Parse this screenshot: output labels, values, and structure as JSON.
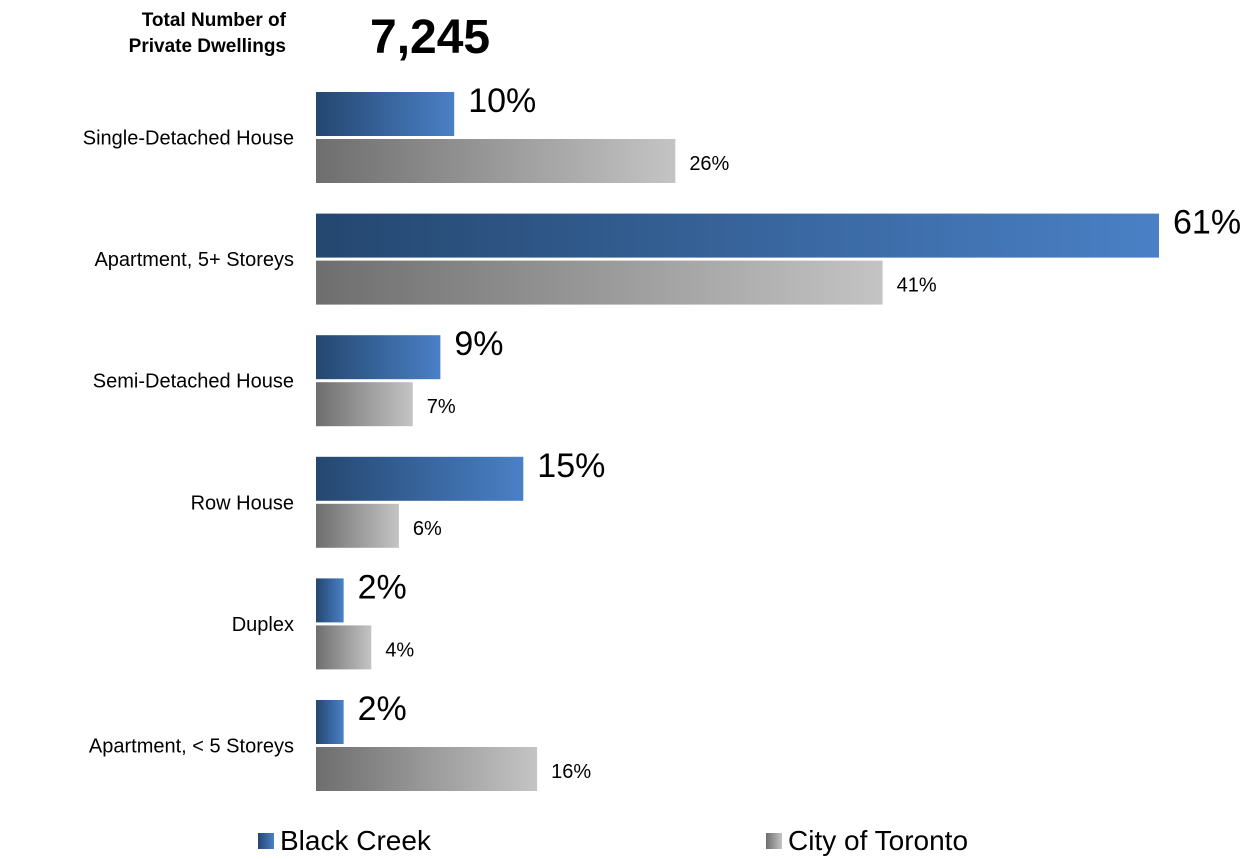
{
  "header": {
    "label_line1": "Total Number of",
    "label_line2": "Private Dwellings",
    "total": "7,245"
  },
  "chart_data": {
    "type": "bar",
    "orientation": "horizontal",
    "categories": [
      "Single-Detached House",
      "Apartment, 5+ Storeys",
      "Semi-Detached House",
      "Row House",
      "Duplex",
      "Apartment, < 5 Storeys"
    ],
    "series": [
      {
        "name": "Black Creek",
        "values": [
          10,
          61,
          9,
          15,
          2,
          2
        ],
        "labels": [
          "10%",
          "61%",
          "9%",
          "15%",
          "2%",
          "2%"
        ],
        "color_dark": "#24476f",
        "color_light": "#4a80c6"
      },
      {
        "name": "City of Toronto",
        "values": [
          26,
          41,
          7,
          6,
          4,
          16
        ],
        "labels": [
          "26%",
          "41%",
          "7%",
          "6%",
          "4%",
          "16%"
        ],
        "color_dark": "#6e6e6e",
        "color_light": "#c4c4c4"
      }
    ],
    "unit": "%",
    "xlim": [
      0,
      61
    ],
    "grid": false,
    "legend": "bottom"
  }
}
